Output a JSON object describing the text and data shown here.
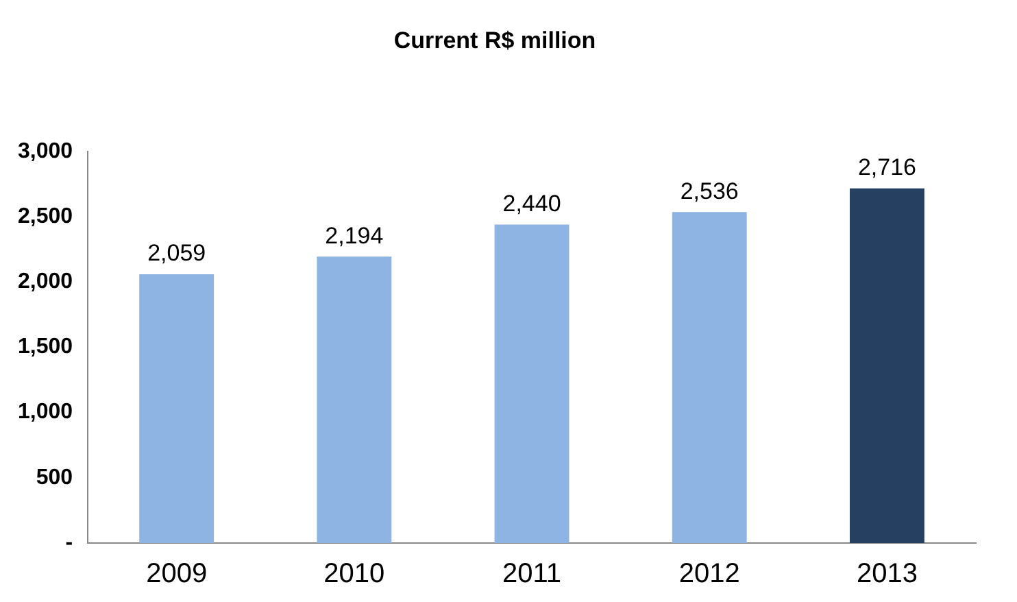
{
  "chart_data": {
    "type": "bar",
    "title": "Current R$ million",
    "categories": [
      "2009",
      "2010",
      "2011",
      "2012",
      "2013"
    ],
    "values": [
      2059,
      2194,
      2440,
      2536,
      2716
    ],
    "colors": [
      "#8db4e2",
      "#8db4e2",
      "#8db4e2",
      "#8db4e2",
      "#254061"
    ],
    "ylim": [
      0,
      3000
    ],
    "yticks": [
      {
        "value": 0,
        "label": "-"
      },
      {
        "value": 500,
        "label": "500"
      },
      {
        "value": 1000,
        "label": "1,000"
      },
      {
        "value": 1500,
        "label": "1,500"
      },
      {
        "value": 2000,
        "label": "2,000"
      },
      {
        "value": 2500,
        "label": "2,500"
      },
      {
        "value": 3000,
        "label": "3,000"
      }
    ],
    "value_labels": [
      "2,059",
      "2,194",
      "2,440",
      "2,536",
      "2,716"
    ],
    "grid": false,
    "legend": false
  }
}
